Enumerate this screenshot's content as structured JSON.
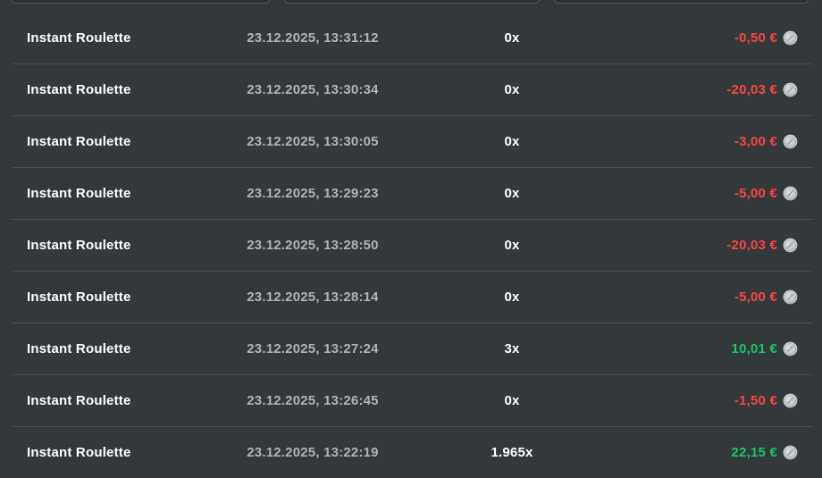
{
  "colors": {
    "background": "#33383a",
    "row_divider": "#4a4f52",
    "game_text": "#ffffff",
    "date_text": "#aeb4b7",
    "negative_amount": "#f94545",
    "positive_amount": "#16c868",
    "coin_fill": "#c9cbcd"
  },
  "icons": {
    "currency": "coin-icon"
  },
  "table": {
    "rows": [
      {
        "game": "Instant Roulette",
        "datetime": "23.12.2025, 13:31:12",
        "multiplier": "0x",
        "amount": "-0,50 €",
        "trend": "negative"
      },
      {
        "game": "Instant Roulette",
        "datetime": "23.12.2025, 13:30:34",
        "multiplier": "0x",
        "amount": "-20,03 €",
        "trend": "negative"
      },
      {
        "game": "Instant Roulette",
        "datetime": "23.12.2025, 13:30:05",
        "multiplier": "0x",
        "amount": "-3,00 €",
        "trend": "negative"
      },
      {
        "game": "Instant Roulette",
        "datetime": "23.12.2025, 13:29:23",
        "multiplier": "0x",
        "amount": "-5,00 €",
        "trend": "negative"
      },
      {
        "game": "Instant Roulette",
        "datetime": "23.12.2025, 13:28:50",
        "multiplier": "0x",
        "amount": "-20,03 €",
        "trend": "negative"
      },
      {
        "game": "Instant Roulette",
        "datetime": "23.12.2025, 13:28:14",
        "multiplier": "0x",
        "amount": "-5,00 €",
        "trend": "negative"
      },
      {
        "game": "Instant Roulette",
        "datetime": "23.12.2025, 13:27:24",
        "multiplier": "3x",
        "amount": "10,01 €",
        "trend": "positive"
      },
      {
        "game": "Instant Roulette",
        "datetime": "23.12.2025, 13:26:45",
        "multiplier": "0x",
        "amount": "-1,50 €",
        "trend": "negative"
      },
      {
        "game": "Instant Roulette",
        "datetime": "23.12.2025, 13:22:19",
        "multiplier": "1.965x",
        "amount": "22,15 €",
        "trend": "positive"
      }
    ]
  }
}
